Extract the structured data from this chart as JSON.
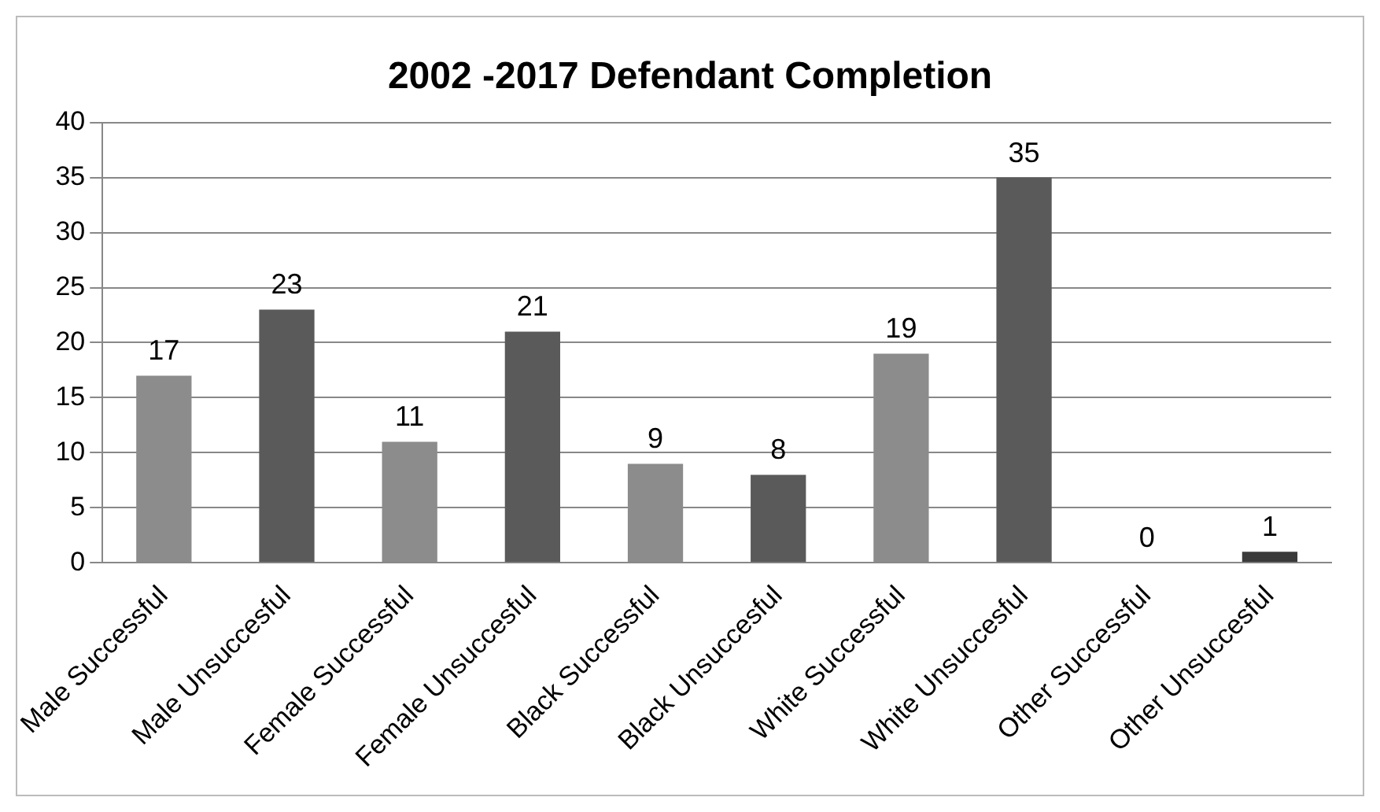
{
  "chart_data": {
    "type": "bar",
    "title": "2002 -2017 Defendant Completion",
    "categories": [
      "Male Successful",
      "Male Unsuccesful",
      "Female Successful",
      "Female Unsuccesful",
      "Black Successful",
      "Black Unsuccesful",
      "White Successful",
      "White Unsuccesful",
      "Other Successful",
      "Other Unsuccesful"
    ],
    "values": [
      17,
      23,
      11,
      21,
      9,
      8,
      19,
      35,
      0,
      1
    ],
    "colors": [
      "#8c8c8c",
      "#5a5a5a",
      "#8c8c8c",
      "#5a5a5a",
      "#8c8c8c",
      "#5a5a5a",
      "#8c8c8c",
      "#5a5a5a",
      "#8c8c8c",
      "#3a3a3a"
    ],
    "ylim": [
      0,
      40
    ],
    "yticks": [
      0,
      5,
      10,
      15,
      20,
      25,
      30,
      35,
      40
    ],
    "grid": "y",
    "data_labels": true,
    "legend": false
  }
}
